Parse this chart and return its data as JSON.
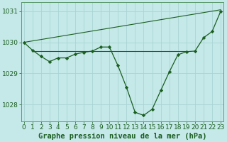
{
  "title": "Graphe pression niveau de la mer (hPa)",
  "hours": [
    0,
    1,
    2,
    3,
    4,
    5,
    6,
    7,
    8,
    9,
    10,
    11,
    12,
    13,
    14,
    15,
    16,
    17,
    18,
    19,
    20,
    21,
    22,
    23
  ],
  "pressure": [
    1030.0,
    1029.75,
    1029.55,
    1029.38,
    1029.5,
    1029.5,
    1029.62,
    1029.68,
    1029.72,
    1029.85,
    1029.85,
    1029.25,
    1028.55,
    1027.75,
    1027.65,
    1027.85,
    1028.45,
    1029.05,
    1029.6,
    1029.7,
    1029.72,
    1030.15,
    1030.35,
    1031.0
  ],
  "flat_line_x": [
    1,
    19
  ],
  "flat_line_y": [
    1029.72,
    1029.72
  ],
  "diag_line_x": [
    0,
    23
  ],
  "diag_line_y": [
    1030.0,
    1031.05
  ],
  "ylim": [
    1027.45,
    1031.3
  ],
  "yticks": [
    1028,
    1029,
    1030,
    1031
  ],
  "xlim": [
    -0.3,
    23.3
  ],
  "background_color": "#c5e8e8",
  "grid_color": "#aad4d4",
  "line_color": "#1a5e20",
  "text_color": "#1a5e20",
  "title_fontsize": 7.5,
  "tick_fontsize": 6.5
}
